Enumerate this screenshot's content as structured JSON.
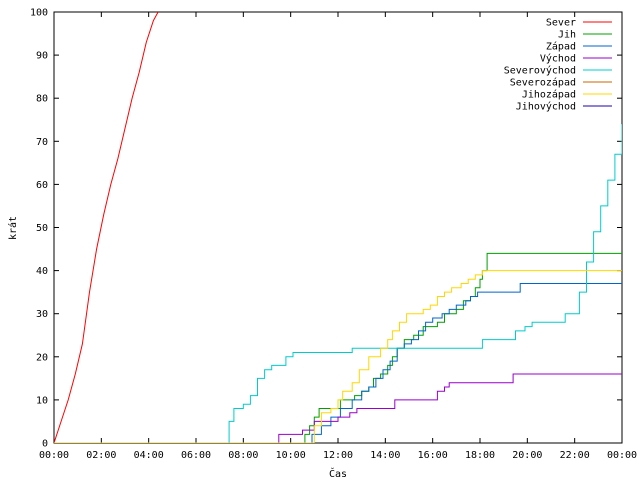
{
  "chart_data": {
    "type": "line",
    "xlabel": "Čas",
    "ylabel": "krát",
    "xlim": [
      0,
      24
    ],
    "ylim": [
      0,
      100
    ],
    "x_ticks": [
      {
        "v": 0,
        "label": "00:00"
      },
      {
        "v": 2,
        "label": "02:00"
      },
      {
        "v": 4,
        "label": "04:00"
      },
      {
        "v": 6,
        "label": "06:00"
      },
      {
        "v": 8,
        "label": "08:00"
      },
      {
        "v": 10,
        "label": "10:00"
      },
      {
        "v": 12,
        "label": "12:00"
      },
      {
        "v": 14,
        "label": "14:00"
      },
      {
        "v": 16,
        "label": "16:00"
      },
      {
        "v": 18,
        "label": "18:00"
      },
      {
        "v": 20,
        "label": "20:00"
      },
      {
        "v": 22,
        "label": "22:00"
      },
      {
        "v": 24,
        "label": "00:00"
      }
    ],
    "y_ticks": [
      0,
      10,
      20,
      30,
      40,
      50,
      60,
      70,
      80,
      90,
      100
    ],
    "grid": false,
    "legend_position": "top-right",
    "series": [
      {
        "name": "Sever",
        "color": "#ff0000",
        "step": false,
        "points": [
          [
            0,
            0
          ],
          [
            0.3,
            5
          ],
          [
            0.6,
            10
          ],
          [
            0.9,
            16
          ],
          [
            1.2,
            23
          ],
          [
            1.5,
            35
          ],
          [
            1.8,
            45
          ],
          [
            2.1,
            53
          ],
          [
            2.4,
            60
          ],
          [
            2.7,
            66
          ],
          [
            3.0,
            73
          ],
          [
            3.3,
            80
          ],
          [
            3.6,
            86
          ],
          [
            3.9,
            93
          ],
          [
            4.2,
            98
          ],
          [
            4.4,
            100
          ]
        ]
      },
      {
        "name": "Jih",
        "color": "#00a000",
        "step": true,
        "points": [
          [
            0,
            0
          ],
          [
            10.5,
            0
          ],
          [
            10.6,
            2
          ],
          [
            10.8,
            4
          ],
          [
            11.0,
            6
          ],
          [
            11.2,
            8
          ],
          [
            11.9,
            8
          ],
          [
            12.1,
            10
          ],
          [
            12.7,
            11
          ],
          [
            13.0,
            12
          ],
          [
            13.3,
            13
          ],
          [
            13.5,
            15
          ],
          [
            13.8,
            16
          ],
          [
            14.1,
            18
          ],
          [
            14.3,
            20
          ],
          [
            14.5,
            22
          ],
          [
            14.8,
            24
          ],
          [
            15.2,
            25
          ],
          [
            15.6,
            27
          ],
          [
            16.2,
            28
          ],
          [
            16.5,
            30
          ],
          [
            17.0,
            31
          ],
          [
            17.3,
            33
          ],
          [
            17.6,
            34
          ],
          [
            17.8,
            36
          ],
          [
            18.0,
            38
          ],
          [
            18.1,
            40
          ],
          [
            18.3,
            44
          ],
          [
            24,
            44
          ]
        ]
      },
      {
        "name": "Západ",
        "color": "#0066cc",
        "step": true,
        "points": [
          [
            0,
            0
          ],
          [
            10.8,
            0
          ],
          [
            10.9,
            2
          ],
          [
            11.3,
            4
          ],
          [
            11.7,
            6
          ],
          [
            12.1,
            8
          ],
          [
            12.6,
            10
          ],
          [
            13.0,
            12
          ],
          [
            13.3,
            13
          ],
          [
            13.6,
            15
          ],
          [
            13.9,
            17
          ],
          [
            14.2,
            19
          ],
          [
            14.5,
            22
          ],
          [
            14.8,
            23
          ],
          [
            15.1,
            24
          ],
          [
            15.4,
            26
          ],
          [
            15.7,
            28
          ],
          [
            16.0,
            29
          ],
          [
            16.4,
            30
          ],
          [
            16.7,
            31
          ],
          [
            17.0,
            32
          ],
          [
            17.4,
            33
          ],
          [
            17.6,
            34
          ],
          [
            17.9,
            35
          ],
          [
            19.4,
            35
          ],
          [
            19.7,
            37
          ],
          [
            24,
            37
          ]
        ]
      },
      {
        "name": "Východ",
        "color": "#9900cc",
        "step": true,
        "points": [
          [
            0,
            0
          ],
          [
            9.4,
            0
          ],
          [
            9.5,
            2
          ],
          [
            10.3,
            2
          ],
          [
            10.5,
            3
          ],
          [
            11.0,
            5
          ],
          [
            12.0,
            6
          ],
          [
            12.5,
            7
          ],
          [
            12.8,
            8
          ],
          [
            14.2,
            8
          ],
          [
            14.4,
            10
          ],
          [
            16.0,
            10
          ],
          [
            16.2,
            12
          ],
          [
            16.5,
            13
          ],
          [
            16.7,
            14
          ],
          [
            19.2,
            14
          ],
          [
            19.4,
            16
          ],
          [
            24,
            16
          ]
        ]
      },
      {
        "name": "Severovýchod",
        "color": "#00cccc",
        "step": true,
        "points": [
          [
            0,
            0
          ],
          [
            7.2,
            0
          ],
          [
            7.4,
            5
          ],
          [
            7.6,
            8
          ],
          [
            8.0,
            9
          ],
          [
            8.3,
            11
          ],
          [
            8.6,
            15
          ],
          [
            8.9,
            17
          ],
          [
            9.2,
            18
          ],
          [
            9.8,
            20
          ],
          [
            10.1,
            21
          ],
          [
            12.2,
            21
          ],
          [
            12.6,
            22
          ],
          [
            17.9,
            22
          ],
          [
            18.1,
            24
          ],
          [
            19.3,
            24
          ],
          [
            19.5,
            26
          ],
          [
            19.9,
            27
          ],
          [
            20.2,
            28
          ],
          [
            21.4,
            28
          ],
          [
            21.6,
            30
          ],
          [
            22.0,
            30
          ],
          [
            22.2,
            35
          ],
          [
            22.5,
            42
          ],
          [
            22.8,
            49
          ],
          [
            23.1,
            55
          ],
          [
            23.4,
            61
          ],
          [
            23.7,
            67
          ],
          [
            24.0,
            74
          ]
        ]
      },
      {
        "name": "Severozápad",
        "color": "#cc6600",
        "step": false,
        "points": []
      },
      {
        "name": "Jihozápad",
        "color": "#ffd700",
        "step": true,
        "points": [
          [
            0,
            0
          ],
          [
            10.8,
            0
          ],
          [
            11.0,
            4
          ],
          [
            11.3,
            7
          ],
          [
            11.7,
            8
          ],
          [
            12.0,
            10
          ],
          [
            12.2,
            12
          ],
          [
            12.6,
            14
          ],
          [
            12.9,
            17
          ],
          [
            13.3,
            20
          ],
          [
            13.8,
            22
          ],
          [
            14.1,
            24
          ],
          [
            14.3,
            26
          ],
          [
            14.6,
            28
          ],
          [
            14.9,
            30
          ],
          [
            15.6,
            31
          ],
          [
            15.9,
            32
          ],
          [
            16.2,
            34
          ],
          [
            16.5,
            35
          ],
          [
            16.8,
            36
          ],
          [
            17.2,
            37
          ],
          [
            17.5,
            38
          ],
          [
            17.8,
            39
          ],
          [
            18.1,
            40
          ],
          [
            24,
            40
          ]
        ]
      },
      {
        "name": "Jihovýchod",
        "color": "#2200aa",
        "step": false,
        "points": []
      }
    ]
  }
}
